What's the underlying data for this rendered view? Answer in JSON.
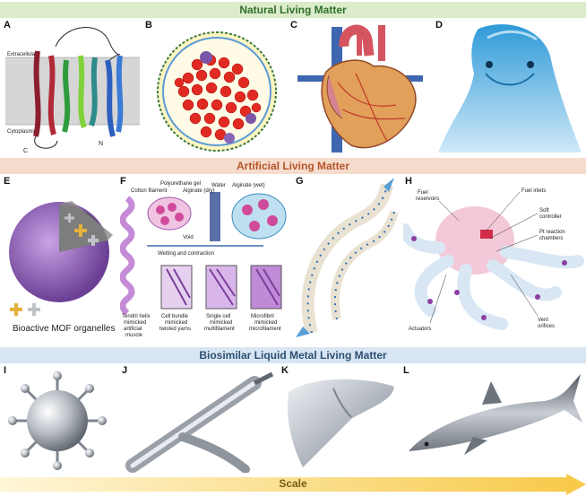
{
  "banners": {
    "natural": "Natural Living Matter",
    "artificial": "Artificial Living Matter",
    "biosimilar": "Biosimilar Liquid Metal Living Matter"
  },
  "panel_labels": [
    "A",
    "B",
    "C",
    "D",
    "E",
    "F",
    "G",
    "H",
    "I",
    "J",
    "K",
    "L"
  ],
  "panel_a": {
    "extracellular": "Extracellular",
    "cytoplasmic": "Cytoplasmic",
    "c_label": "C",
    "n_label": "N"
  },
  "panel_e": {
    "caption": "Bioactive MOF organelles"
  },
  "panel_f": {
    "cotton_filament": "Cotton filament",
    "polyurethane_gel": "Polyurethane gel",
    "alginate_dry": "Alginate (dry)",
    "water": "Water",
    "alginate_wet": "Alginate (wet)",
    "void": "Void",
    "wetting": "Wetting and contraction",
    "tendril_1": "Tendril helix",
    "tendril_2": "mimicked",
    "tendril_3": "artificial",
    "tendril_4": "muscle",
    "bundle_1": "Cell bundle",
    "bundle_2": "mimicked",
    "bundle_3": "twisted yarns",
    "single_1": "Single cell",
    "single_2": "mimicked",
    "single_3": "multifilament",
    "micro_1": "Microfibril",
    "micro_2": "mimicked",
    "micro_3": "microfilament"
  },
  "panel_h": {
    "fuel_inlets": "Fuel inlets",
    "fuel_reservoirs_1": "Fuel",
    "fuel_reservoirs_2": "reservoirs",
    "soft_controller_1": "Soft",
    "soft_controller_2": "controller",
    "pt_1": "Pt reaction",
    "pt_2": "chambers",
    "actuators": "Actuators",
    "vent_1": "Vent",
    "vent_2": "orifices"
  },
  "scale": "Scale",
  "colors": {
    "green_banner": "#dceccb",
    "orange_banner": "#f6dccd",
    "blue_banner": "#d7e6f2",
    "scale_arrow": "#f7c948"
  }
}
